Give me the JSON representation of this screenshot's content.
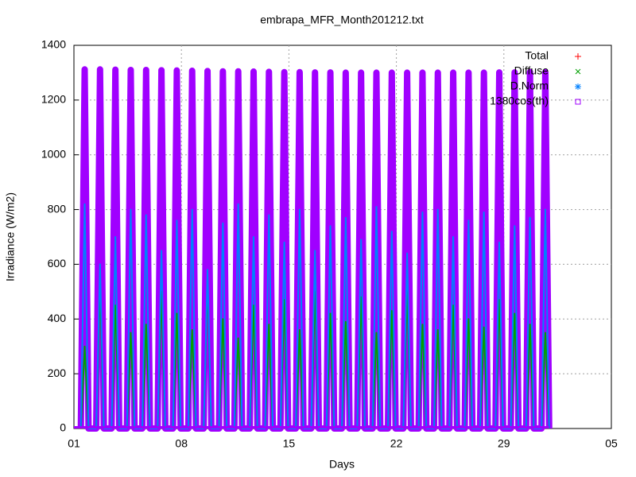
{
  "chart_data": {
    "type": "line",
    "title": "embrapa_MFR_Month201212.txt",
    "xlabel": "Days",
    "ylabel": "Irradiance (W/m2)",
    "xlim": [
      0,
      35
    ],
    "xticks": [
      {
        "value": 0,
        "label": "01"
      },
      {
        "value": 7,
        "label": "08"
      },
      {
        "value": 14,
        "label": "15"
      },
      {
        "value": 21,
        "label": "22"
      },
      {
        "value": 28,
        "label": "29"
      },
      {
        "value": 35,
        "label": "05"
      }
    ],
    "ylim": [
      0,
      1400
    ],
    "yticks": [
      0,
      200,
      400,
      600,
      800,
      1000,
      1200,
      1400
    ],
    "grid": true,
    "legend": "top-right",
    "x": [
      0.45,
      0.7,
      0.95,
      1.45,
      1.7,
      1.95,
      2.45,
      2.7,
      2.95,
      3.45,
      3.7,
      3.95,
      4.45,
      4.7,
      4.95,
      5.45,
      5.7,
      5.95,
      6.45,
      6.7,
      6.95,
      7.45,
      7.7,
      7.95,
      8.45,
      8.7,
      8.95,
      9.45,
      9.7,
      9.95,
      10.45,
      10.7,
      10.95,
      11.45,
      11.7,
      11.95,
      12.45,
      12.7,
      12.95,
      13.45,
      13.7,
      13.95,
      14.45,
      14.7,
      14.95,
      15.45,
      15.7,
      15.95,
      16.45,
      16.7,
      16.95,
      17.45,
      17.7,
      17.95,
      18.45,
      18.7,
      18.95,
      19.45,
      19.7,
      19.95,
      20.45,
      20.7,
      20.95,
      21.45,
      21.7,
      21.95,
      22.45,
      22.7,
      22.95,
      23.45,
      23.7,
      23.95,
      24.45,
      24.7,
      24.95,
      25.45,
      25.7,
      25.95,
      26.45,
      26.7,
      26.95,
      27.45,
      27.7,
      27.95,
      28.45,
      28.7,
      28.95,
      29.45,
      29.7,
      29.95,
      30.45,
      30.7,
      30.95
    ],
    "series": [
      {
        "name": "Total",
        "color": "#ff0000",
        "marker": "plus",
        "values": [
          0,
          870,
          0,
          0,
          860,
          0,
          0,
          880,
          0,
          0,
          850,
          0,
          0,
          865,
          0,
          0,
          875,
          0,
          0,
          860,
          0,
          0,
          870,
          0,
          0,
          855,
          0,
          0,
          880,
          0,
          0,
          865,
          0,
          0,
          860,
          0,
          0,
          870,
          0,
          0,
          855,
          0,
          0,
          860,
          0,
          0,
          875,
          0,
          0,
          880,
          0,
          0,
          870,
          0,
          0,
          865,
          0,
          0,
          860,
          0,
          0,
          870,
          0,
          0,
          875,
          0,
          0,
          860,
          0,
          0,
          850,
          0,
          0,
          865,
          0,
          0,
          880,
          0,
          0,
          870,
          0,
          0,
          860,
          0,
          0,
          855,
          0,
          0,
          865,
          0,
          0,
          870,
          0
        ]
      },
      {
        "name": "Diffuse",
        "color": "#00a000",
        "marker": "cross",
        "values": [
          0,
          300,
          0,
          0,
          520,
          0,
          0,
          450,
          0,
          0,
          350,
          0,
          0,
          380,
          0,
          0,
          500,
          0,
          0,
          420,
          0,
          0,
          360,
          0,
          0,
          540,
          0,
          0,
          400,
          0,
          0,
          330,
          0,
          0,
          450,
          0,
          0,
          380,
          0,
          0,
          470,
          0,
          0,
          360,
          0,
          0,
          500,
          0,
          0,
          420,
          0,
          0,
          390,
          0,
          0,
          480,
          0,
          0,
          350,
          0,
          0,
          430,
          0,
          0,
          510,
          0,
          0,
          380,
          0,
          0,
          360,
          0,
          0,
          450,
          0,
          0,
          400,
          0,
          0,
          370,
          0,
          0,
          470,
          0,
          0,
          420,
          0,
          0,
          380,
          0,
          0,
          350,
          0
        ]
      },
      {
        "name": "D.Norm",
        "color": "#0080ff",
        "marker": "star",
        "values": [
          0,
          820,
          0,
          0,
          600,
          0,
          0,
          700,
          0,
          0,
          800,
          0,
          0,
          780,
          0,
          0,
          650,
          0,
          0,
          760,
          0,
          0,
          800,
          0,
          0,
          580,
          0,
          0,
          750,
          0,
          0,
          820,
          0,
          0,
          700,
          0,
          0,
          780,
          0,
          0,
          680,
          0,
          0,
          800,
          0,
          0,
          650,
          0,
          0,
          740,
          0,
          0,
          770,
          0,
          0,
          690,
          0,
          0,
          810,
          0,
          0,
          720,
          0,
          0,
          640,
          0,
          0,
          790,
          0,
          0,
          800,
          0,
          0,
          700,
          0,
          0,
          760,
          0,
          0,
          790,
          0,
          0,
          680,
          0,
          0,
          740,
          0,
          0,
          770,
          0,
          0,
          800,
          0
        ]
      },
      {
        "name": "1380cos(th)",
        "color": "#a000ff",
        "marker": "square",
        "values": [
          0,
          1312,
          0,
          0,
          1312,
          0,
          0,
          1311,
          0,
          0,
          1310,
          0,
          0,
          1310,
          0,
          0,
          1309,
          0,
          0,
          1308,
          0,
          0,
          1307,
          0,
          0,
          1306,
          0,
          0,
          1305,
          0,
          0,
          1305,
          0,
          0,
          1304,
          0,
          0,
          1303,
          0,
          0,
          1302,
          0,
          0,
          1302,
          0,
          0,
          1301,
          0,
          0,
          1301,
          0,
          0,
          1300,
          0,
          0,
          1300,
          0,
          0,
          1300,
          0,
          0,
          1300,
          0,
          0,
          1300,
          0,
          0,
          1300,
          0,
          0,
          1300,
          0,
          0,
          1300,
          0,
          0,
          1300,
          0,
          0,
          1300,
          0,
          0,
          1301,
          0,
          0,
          1301,
          0,
          0,
          1302,
          0,
          0,
          1302,
          0
        ]
      }
    ]
  }
}
